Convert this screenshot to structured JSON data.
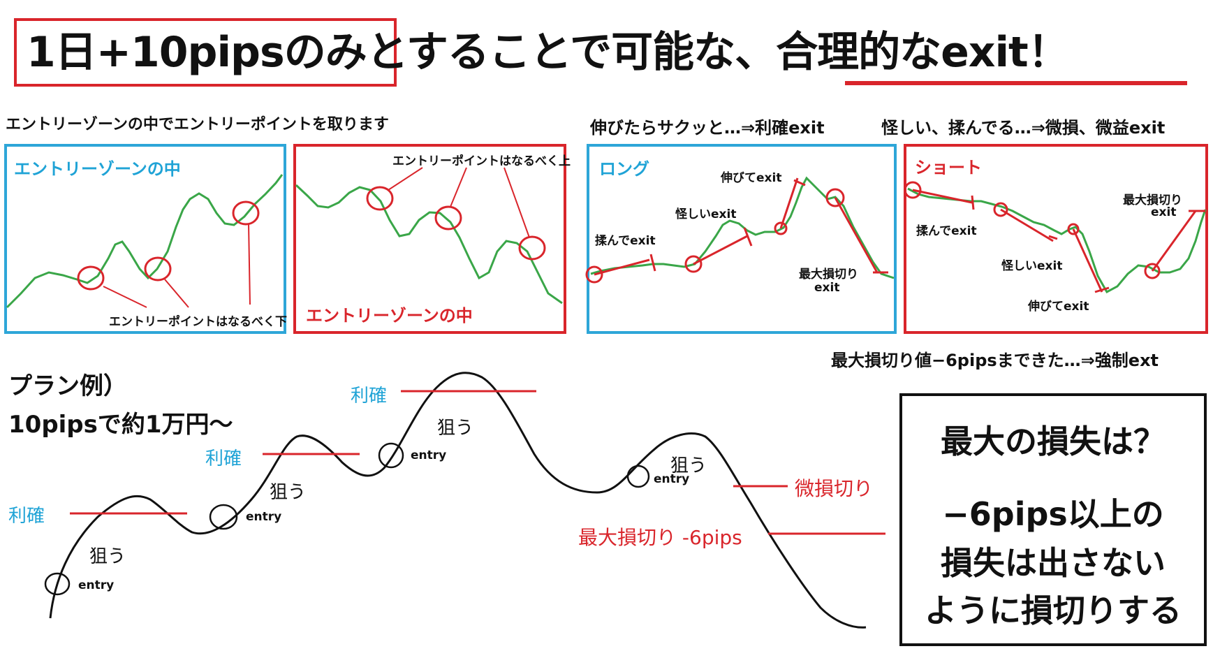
{
  "header": {
    "title": "1日+10pipsのみとすることで可能な、合理的なexit！"
  },
  "captions": {
    "entry_caption": "エントリーゾーンの中でエントリーポイントを取ります",
    "exit_caption_a": "伸びたらサクッと…⇒利確exit",
    "exit_caption_b": "怪しい、揉んでる…⇒微損、微益exit",
    "force_caption": "最大損切り値−6pipsまできた…⇒強制ext"
  },
  "panels": {
    "p1": {
      "label": "エントリーゾーンの中",
      "note": "エントリーポイントはなるべく下"
    },
    "p2": {
      "label": "エントリーゾーンの中",
      "note": "エントリーポイントはなるべく上"
    },
    "p3": {
      "label": "ロング",
      "a": "揉んでexit",
      "b": "怪しいexit",
      "c": "伸びてexit",
      "d1": "最大損切り",
      "d2": "exit"
    },
    "p4": {
      "label": "ショート",
      "a": "揉んでexit",
      "b": "怪しいexit",
      "c": "伸びてexit",
      "d1": "最大損切り",
      "d2": "exit"
    }
  },
  "plan": {
    "title": "プラン例）",
    "subtitle": "10pipsで約1万円〜",
    "take_profit": "利確",
    "aim": "狙う",
    "entry": "entry",
    "small_loss": "微損切り",
    "max_loss": "最大損切り -6pips"
  },
  "loss_box": {
    "q": "最大の損失は？",
    "a1": "−6pips以上の",
    "a2": "損失は出さない",
    "a3": "ように損切りする"
  },
  "colors": {
    "accent_red": "#d9252b",
    "accent_blue": "#1fa3d6",
    "line_green": "#3aa648"
  }
}
